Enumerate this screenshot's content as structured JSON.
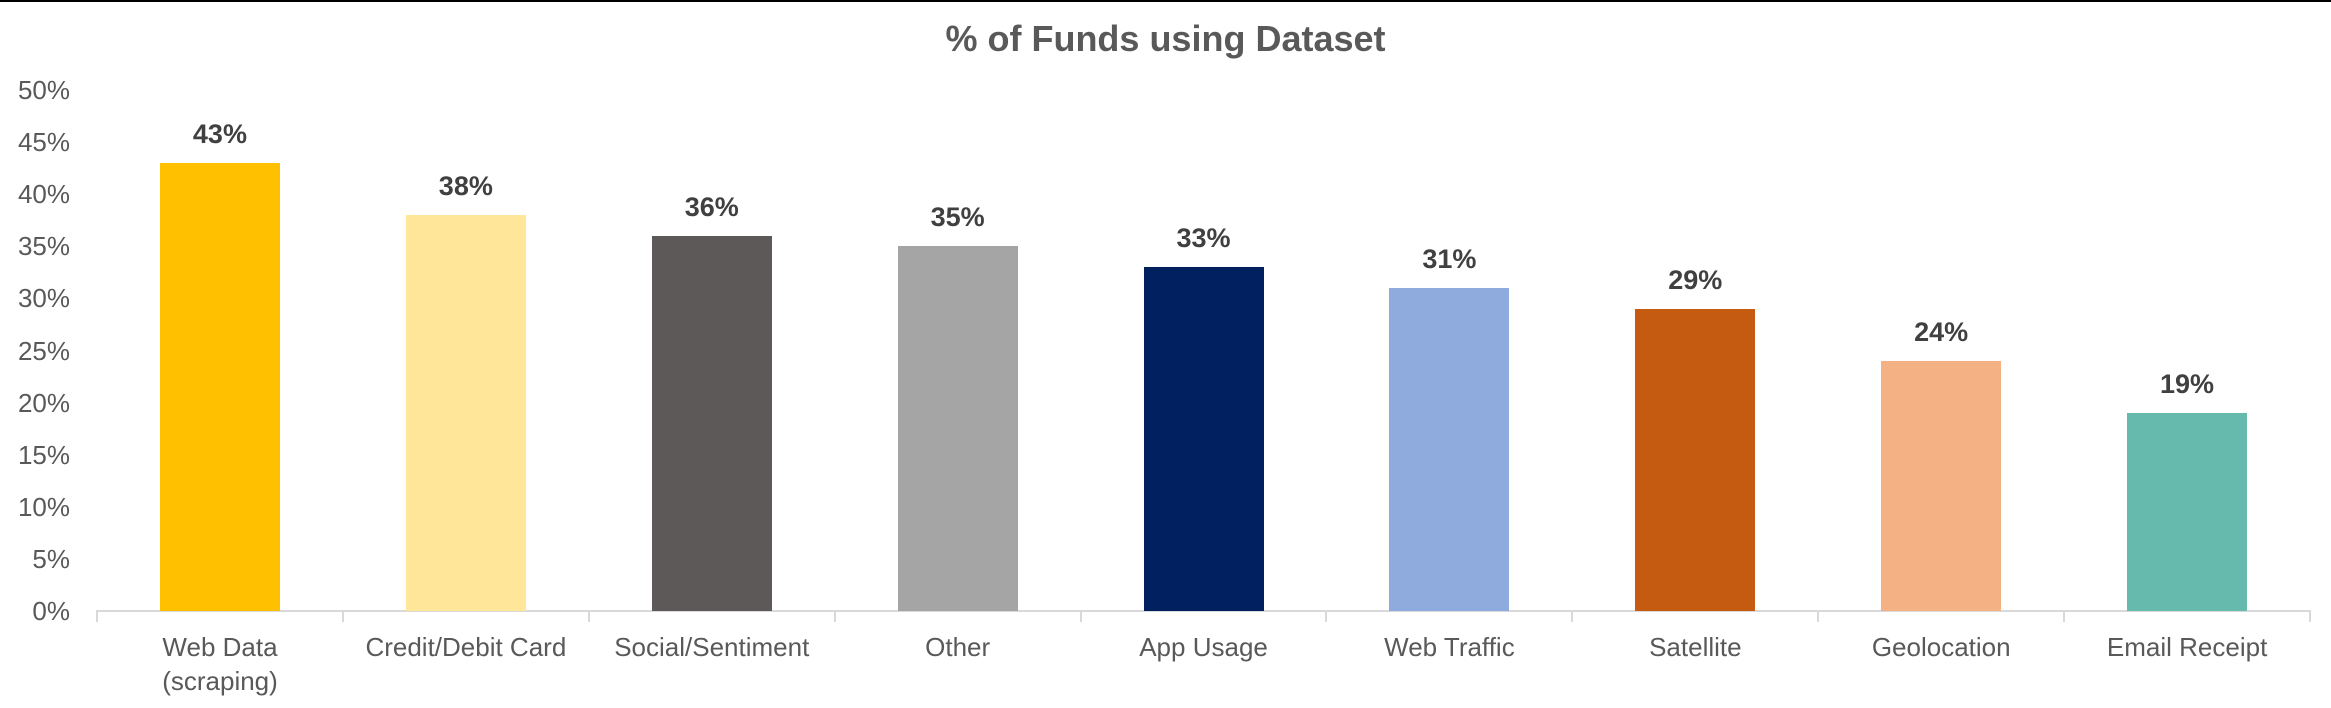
{
  "chart_data": {
    "type": "bar",
    "title": "% of Funds using Dataset",
    "xlabel": "",
    "ylabel": "",
    "ylim": [
      0,
      50
    ],
    "yticks": [
      "0%",
      "5%",
      "10%",
      "15%",
      "20%",
      "25%",
      "30%",
      "35%",
      "40%",
      "45%",
      "50%"
    ],
    "grid": false,
    "legend": "none",
    "categories": [
      "Web Data\n(scraping)",
      "Credit/Debit Card",
      "Social/Sentiment",
      "Other",
      "App Usage",
      "Web Traffic",
      "Satellite",
      "Geolocation",
      "Email Receipt"
    ],
    "values": [
      43,
      38,
      36,
      35,
      33,
      31,
      29,
      24,
      19
    ],
    "data_labels": [
      "43%",
      "38%",
      "36%",
      "35%",
      "33%",
      "31%",
      "29%",
      "24%",
      "19%"
    ],
    "colors": [
      "#FFC000",
      "#FFE699",
      "#5D5958",
      "#A5A5A5",
      "#002060",
      "#8FAADC",
      "#C55A11",
      "#F4B183",
      "#65B9AD"
    ]
  }
}
